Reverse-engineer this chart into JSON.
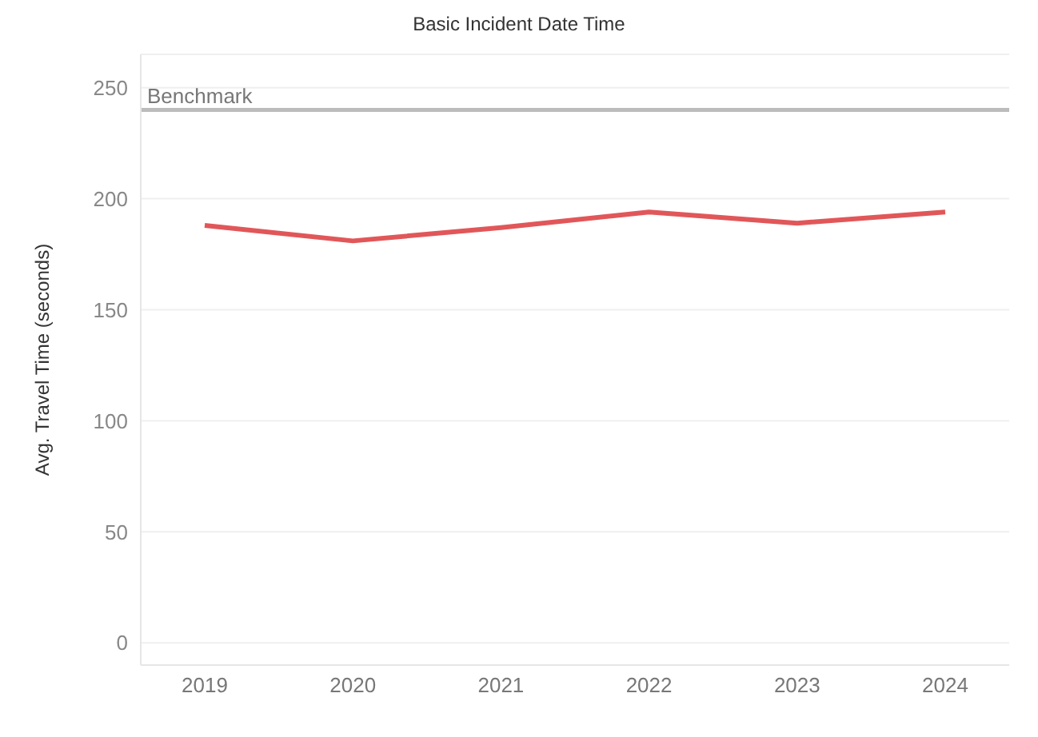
{
  "chart_data": {
    "type": "line",
    "title": "Basic Incident Date Time",
    "ylabel": "Avg. Travel Time (seconds)",
    "categories": [
      "2019",
      "2020",
      "2021",
      "2022",
      "2023",
      "2024"
    ],
    "series": [
      {
        "color": "#e15759",
        "values": [
          188,
          181,
          187,
          194,
          189,
          194
        ]
      }
    ],
    "ylim": [
      -10,
      265
    ],
    "yticks": [
      0,
      50,
      100,
      150,
      200,
      250
    ],
    "grid": "y",
    "marker": "none",
    "line_style": "solid",
    "ref_lines": [
      {
        "axis": "y",
        "value": 240,
        "label": "Benchmark",
        "color": "#bcbcbc"
      }
    ]
  }
}
